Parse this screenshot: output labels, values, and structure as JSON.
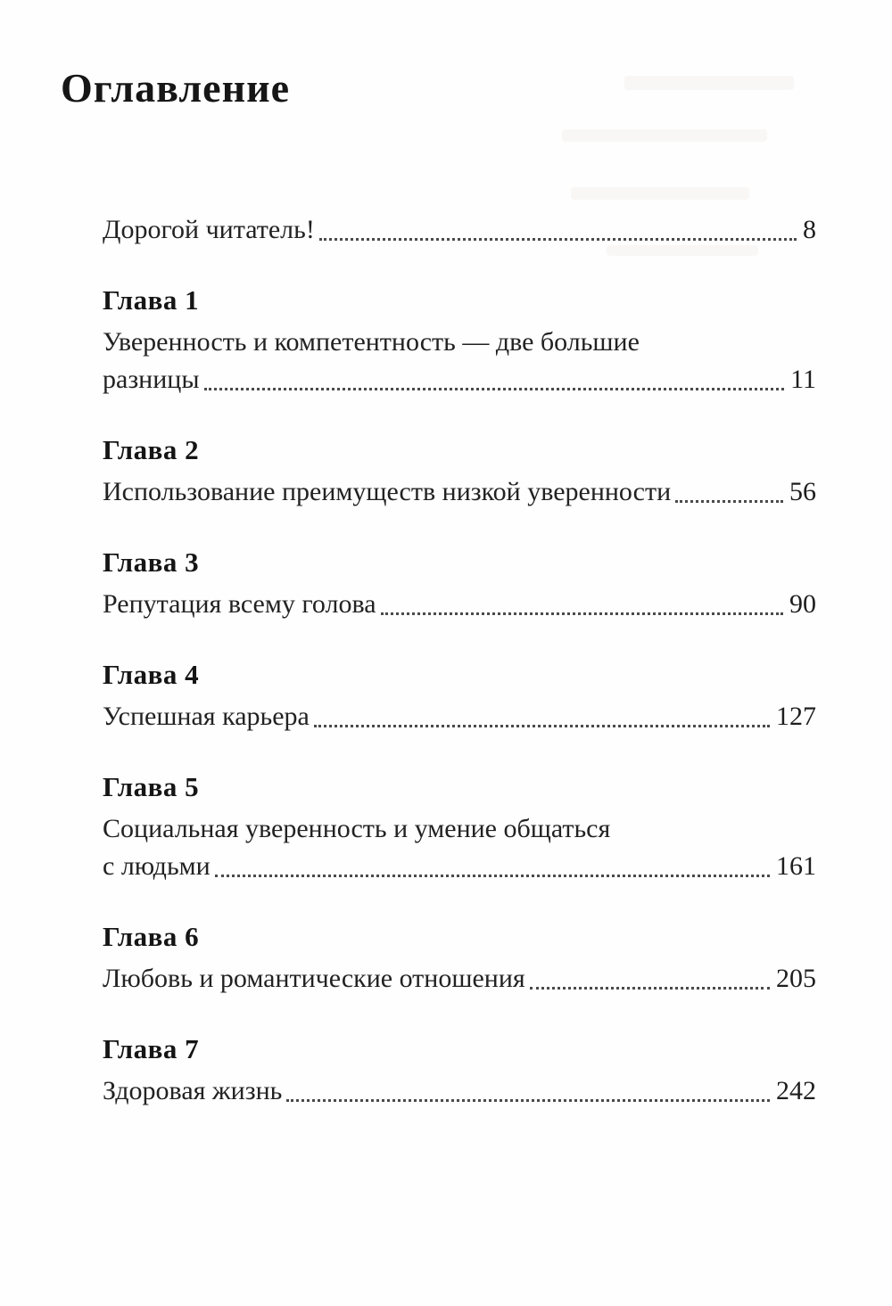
{
  "document": {
    "title": "Оглавление",
    "entries": [
      {
        "tail": "Дорогой читатель!",
        "page": "8"
      },
      {
        "heading": "Глава 1",
        "wrap": "Уверенность и компетентность — две большие",
        "tail": "разницы",
        "page": "11"
      },
      {
        "heading": "Глава 2",
        "tail": "Использование преимуществ низкой уверенности",
        "page": "56"
      },
      {
        "heading": "Глава 3",
        "tail": "Репутация всему голова",
        "page": "90"
      },
      {
        "heading": "Глава 4",
        "tail": "Успешная карьера",
        "page": "127"
      },
      {
        "heading": "Глава 5",
        "wrap": "Социальная уверенность и умение общаться",
        "tail": "с людьми",
        "page": "161"
      },
      {
        "heading": "Глава 6",
        "tail": "Любовь и романтические отношения",
        "page": "205"
      },
      {
        "heading": "Глава 7",
        "tail": "Здоровая жизнь",
        "page": "242"
      }
    ]
  }
}
